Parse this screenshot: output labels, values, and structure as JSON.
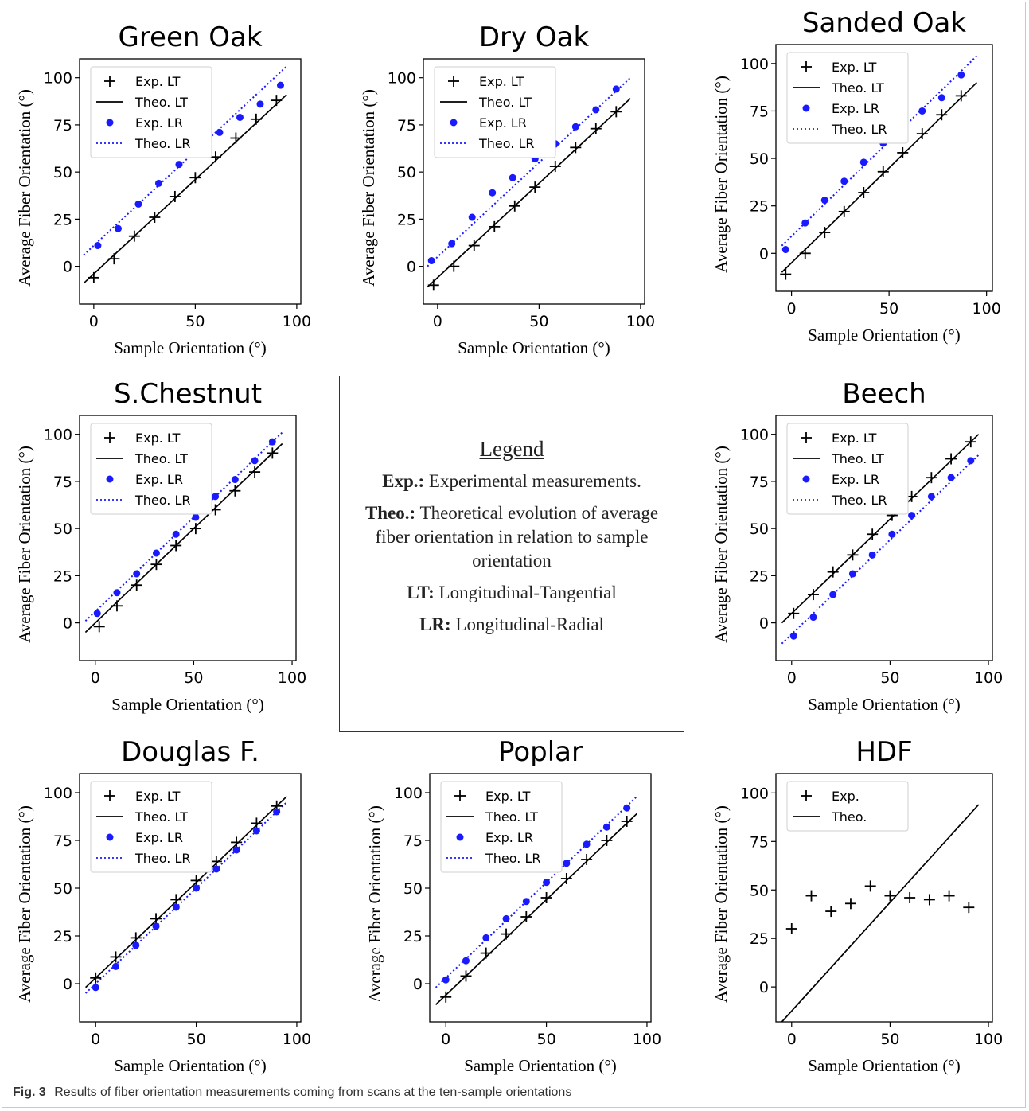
{
  "legend_panel": {
    "heading": "Legend",
    "exp_term": "Exp.:",
    "exp_text": "Experimental measurements.",
    "theo_term": "Theo.:",
    "theo_text": "Theoretical evolution of average fiber orientation in relation to sample orientation",
    "lt_term": "LT:",
    "lt_text": "Longitudinal-Tangential",
    "lr_term": "LR:",
    "lr_text": "Longitudinal-Radial"
  },
  "caption": {
    "label": "Fig. 3",
    "text": "Results of fiber orientation measurements coming from scans at the ten-sample orientations"
  },
  "colors": {
    "lt": "#000000",
    "lr": "#1a1aff"
  },
  "chart_data": [
    {
      "type": "scatter",
      "title": "Green Oak",
      "xlabel": "Sample Orientation (°)",
      "ylabel": "Average Fiber Orientation (°)",
      "xlim": [
        -7,
        102
      ],
      "ylim": [
        -20,
        110
      ],
      "xticks": [
        0,
        50,
        100
      ],
      "yticks": [
        0,
        25,
        50,
        75,
        100
      ],
      "legend_position": "top-left",
      "series": [
        {
          "name": "Exp. LT",
          "kind": "points-plus",
          "color": "#000000",
          "x": [
            0,
            10,
            20,
            30,
            40,
            50,
            60,
            70,
            80,
            90
          ],
          "y": [
            -6,
            4,
            16,
            26,
            37,
            47,
            58,
            68,
            78,
            88
          ]
        },
        {
          "name": "Theo. LT",
          "kind": "line-solid",
          "color": "#000000",
          "x": [
            -5,
            95
          ],
          "y": [
            -9,
            91
          ]
        },
        {
          "name": "Exp. LR",
          "kind": "points-dot",
          "color": "#1a1aff",
          "x": [
            2,
            12,
            22,
            32,
            42,
            52,
            62,
            72,
            82,
            92
          ],
          "y": [
            11,
            20,
            33,
            44,
            54,
            63,
            71,
            79,
            86,
            96
          ]
        },
        {
          "name": "Theo. LR",
          "kind": "line-dotted",
          "color": "#1a1aff",
          "x": [
            -5,
            95
          ],
          "y": [
            6,
            106
          ]
        }
      ]
    },
    {
      "type": "scatter",
      "title": "Dry Oak",
      "xlabel": "Sample Orientation (°)",
      "ylabel": "Average Fiber Orientation (°)",
      "xlim": [
        -7,
        102
      ],
      "ylim": [
        -20,
        110
      ],
      "xticks": [
        0,
        50,
        100
      ],
      "yticks": [
        0,
        25,
        50,
        75,
        100
      ],
      "legend_position": "top-left",
      "series": [
        {
          "name": "Exp. LT",
          "kind": "points-plus",
          "color": "#000000",
          "x": [
            -2,
            8,
            18,
            28,
            38,
            48,
            58,
            68,
            78,
            88
          ],
          "y": [
            -10,
            0,
            11,
            21,
            32,
            42,
            53,
            63,
            73,
            82
          ]
        },
        {
          "name": "Theo. LT",
          "kind": "line-solid",
          "color": "#000000",
          "x": [
            -5,
            95
          ],
          "y": [
            -11,
            89
          ]
        },
        {
          "name": "Exp. LR",
          "kind": "points-dot",
          "color": "#1a1aff",
          "x": [
            -3,
            7,
            17,
            27,
            37,
            48,
            58,
            68,
            78,
            88
          ],
          "y": [
            3,
            12,
            26,
            39,
            47,
            57,
            65,
            74,
            83,
            94
          ]
        },
        {
          "name": "Theo. LR",
          "kind": "line-dotted",
          "color": "#1a1aff",
          "x": [
            -5,
            95
          ],
          "y": [
            0,
            100
          ]
        }
      ]
    },
    {
      "type": "scatter",
      "title": "Sanded Oak",
      "xlabel": "Sample Orientation (°)",
      "ylabel": "Average Fiber Orientation (°)",
      "xlim": [
        -8,
        103
      ],
      "ylim": [
        -20,
        110
      ],
      "xticks": [
        0,
        50,
        100
      ],
      "yticks": [
        0,
        25,
        50,
        75,
        100
      ],
      "legend_position": "top-left",
      "series": [
        {
          "name": "Exp. LT",
          "kind": "points-plus",
          "color": "#000000",
          "x": [
            -3,
            7,
            17,
            27,
            37,
            47,
            57,
            67,
            77,
            87
          ],
          "y": [
            -11,
            0,
            11,
            22,
            32,
            43,
            53,
            63,
            73,
            83
          ]
        },
        {
          "name": "Theo. LT",
          "kind": "line-solid",
          "color": "#000000",
          "x": [
            -5,
            95
          ],
          "y": [
            -10,
            90
          ]
        },
        {
          "name": "Exp. LR",
          "kind": "points-dot",
          "color": "#1a1aff",
          "x": [
            -3,
            7,
            17,
            27,
            37,
            47,
            57,
            67,
            77,
            87
          ],
          "y": [
            2,
            16,
            28,
            38,
            48,
            58,
            65,
            75,
            82,
            94
          ]
        },
        {
          "name": "Theo. LR",
          "kind": "line-dotted",
          "color": "#1a1aff",
          "x": [
            -5,
            95
          ],
          "y": [
            4,
            104
          ]
        }
      ]
    },
    {
      "type": "scatter",
      "title": "S.Chestnut",
      "xlabel": "Sample Orientation (°)",
      "ylabel": "Average Fiber Orientation (°)",
      "xlim": [
        -8,
        102
      ],
      "ylim": [
        -20,
        110
      ],
      "xticks": [
        0,
        50,
        100
      ],
      "yticks": [
        0,
        25,
        50,
        75,
        100
      ],
      "legend_position": "top-left",
      "series": [
        {
          "name": "Exp. LT",
          "kind": "points-plus",
          "color": "#000000",
          "x": [
            2,
            11,
            21,
            31,
            41,
            51,
            61,
            71,
            81,
            90
          ],
          "y": [
            -2,
            9,
            20,
            31,
            41,
            50,
            60,
            70,
            80,
            90
          ]
        },
        {
          "name": "Theo. LT",
          "kind": "line-solid",
          "color": "#000000",
          "x": [
            -5,
            95
          ],
          "y": [
            -5,
            95
          ]
        },
        {
          "name": "Exp. LR",
          "kind": "points-dot",
          "color": "#1a1aff",
          "x": [
            1,
            11,
            21,
            31,
            41,
            51,
            61,
            71,
            81,
            90
          ],
          "y": [
            5,
            16,
            26,
            37,
            47,
            56,
            67,
            76,
            86,
            96
          ]
        },
        {
          "name": "Theo. LR",
          "kind": "line-dotted",
          "color": "#1a1aff",
          "x": [
            -5,
            95
          ],
          "y": [
            1,
            101
          ]
        }
      ]
    },
    {
      "type": "scatter",
      "title": "Beech",
      "xlabel": "Sample Orientation (°)",
      "ylabel": "Average Fiber Orientation (°)",
      "xlim": [
        -8,
        102
      ],
      "ylim": [
        -20,
        110
      ],
      "xticks": [
        0,
        50,
        100
      ],
      "yticks": [
        0,
        25,
        50,
        75,
        100
      ],
      "legend_position": "top-left",
      "series": [
        {
          "name": "Exp. LT",
          "kind": "points-plus",
          "color": "#000000",
          "x": [
            1,
            11,
            21,
            31,
            41,
            51,
            61,
            71,
            81,
            91
          ],
          "y": [
            5,
            15,
            27,
            36,
            47,
            57,
            67,
            77,
            87,
            96
          ]
        },
        {
          "name": "Theo. LT",
          "kind": "line-solid",
          "color": "#000000",
          "x": [
            -5,
            95
          ],
          "y": [
            0,
            100
          ]
        },
        {
          "name": "Exp. LR",
          "kind": "points-dot",
          "color": "#1a1aff",
          "x": [
            1,
            11,
            21,
            31,
            41,
            51,
            61,
            71,
            81,
            91
          ],
          "y": [
            -7,
            3,
            15,
            26,
            36,
            47,
            57,
            67,
            77,
            86
          ]
        },
        {
          "name": "Theo. LR",
          "kind": "line-dotted",
          "color": "#1a1aff",
          "x": [
            -5,
            95
          ],
          "y": [
            -11,
            89
          ]
        }
      ]
    },
    {
      "type": "scatter",
      "title": "Douglas F.",
      "xlabel": "Sample Orientation (°)",
      "ylabel": "Average Fiber Orientation (°)",
      "xlim": [
        -8,
        102
      ],
      "ylim": [
        -20,
        110
      ],
      "xticks": [
        0,
        50,
        100
      ],
      "yticks": [
        0,
        25,
        50,
        75,
        100
      ],
      "legend_position": "top-left",
      "series": [
        {
          "name": "Exp. LT",
          "kind": "points-plus",
          "color": "#000000",
          "x": [
            0,
            10,
            20,
            30,
            40,
            50,
            60,
            70,
            80,
            90
          ],
          "y": [
            3,
            14,
            24,
            34,
            44,
            54,
            64,
            74,
            84,
            93
          ]
        },
        {
          "name": "Theo. LT",
          "kind": "line-solid",
          "color": "#000000",
          "x": [
            -5,
            95
          ],
          "y": [
            -2,
            98
          ]
        },
        {
          "name": "Exp. LR",
          "kind": "points-dot",
          "color": "#1a1aff",
          "x": [
            0,
            10,
            20,
            30,
            40,
            50,
            60,
            70,
            80,
            90
          ],
          "y": [
            -2,
            9,
            20,
            30,
            40,
            50,
            60,
            70,
            80,
            90
          ]
        },
        {
          "name": "Theo. LR",
          "kind": "line-dotted",
          "color": "#1a1aff",
          "x": [
            -5,
            95
          ],
          "y": [
            -5,
            95
          ]
        }
      ]
    },
    {
      "type": "scatter",
      "title": "Poplar",
      "xlabel": "Sample Orientation (°)",
      "ylabel": "Average Fiber Orientation (°)",
      "xlim": [
        -8,
        102
      ],
      "ylim": [
        -20,
        110
      ],
      "xticks": [
        0,
        50,
        100
      ],
      "yticks": [
        0,
        25,
        50,
        75,
        100
      ],
      "legend_position": "top-left",
      "series": [
        {
          "name": "Exp. LT",
          "kind": "points-plus",
          "color": "#000000",
          "x": [
            0,
            10,
            20,
            30,
            40,
            50,
            60,
            70,
            80,
            90
          ],
          "y": [
            -7,
            4,
            16,
            26,
            35,
            45,
            55,
            65,
            75,
            85
          ]
        },
        {
          "name": "Theo. LT",
          "kind": "line-solid",
          "color": "#000000",
          "x": [
            -5,
            95
          ],
          "y": [
            -11,
            89
          ]
        },
        {
          "name": "Exp. LR",
          "kind": "points-dot",
          "color": "#1a1aff",
          "x": [
            0,
            10,
            20,
            30,
            40,
            50,
            60,
            70,
            80,
            90
          ],
          "y": [
            2,
            12,
            24,
            34,
            43,
            53,
            63,
            73,
            82,
            92
          ]
        },
        {
          "name": "Theo. LR",
          "kind": "line-dotted",
          "color": "#1a1aff",
          "x": [
            -5,
            95
          ],
          "y": [
            -2,
            98
          ]
        }
      ]
    },
    {
      "type": "scatter",
      "title": "HDF",
      "xlabel": "Sample Orientation (°)",
      "ylabel": "Average Fiber Orientation (°)",
      "xlim": [
        -8,
        102
      ],
      "ylim": [
        -18,
        110
      ],
      "xticks": [
        0,
        50,
        100
      ],
      "yticks": [
        0,
        25,
        50,
        75,
        100
      ],
      "legend_position": "top-left",
      "series": [
        {
          "name": "Exp.",
          "kind": "points-plus",
          "color": "#000000",
          "x": [
            0,
            10,
            20,
            30,
            40,
            50,
            60,
            70,
            80,
            90
          ],
          "y": [
            30,
            47,
            39,
            43,
            52,
            47,
            46,
            45,
            47,
            41
          ]
        },
        {
          "name": "Theo.",
          "kind": "line-solid",
          "color": "#000000",
          "x": [
            -5,
            95
          ],
          "y": [
            -18,
            94
          ]
        }
      ]
    }
  ]
}
